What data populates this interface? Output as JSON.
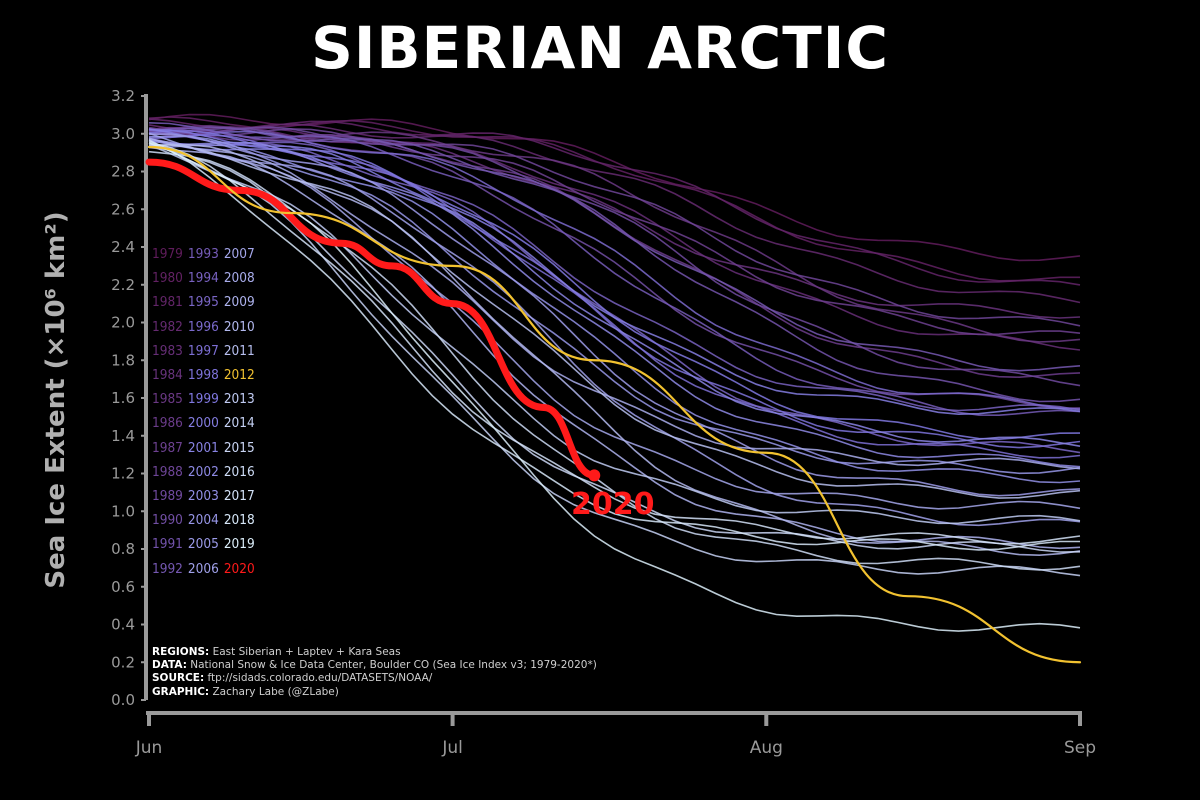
{
  "title": "SIBERIAN ARCTIC",
  "chart_data": {
    "type": "line",
    "title": "SIBERIAN ARCTIC",
    "ylabel": "Sea Ice Extent (×10⁶ km²)",
    "ylim": [
      0.0,
      3.2
    ],
    "yticks": [
      "0.0",
      "0.2",
      "0.4",
      "0.6",
      "0.8",
      "1.0",
      "1.2",
      "1.4",
      "1.6",
      "1.8",
      "2.0",
      "2.2",
      "2.4",
      "2.6",
      "2.8",
      "3.0",
      "3.2"
    ],
    "xticks": [
      "Jun",
      "Jul",
      "Aug",
      "Sep"
    ],
    "legend_years": [
      [
        "1979",
        "1993",
        "2007"
      ],
      [
        "1980",
        "1994",
        "2008"
      ],
      [
        "1981",
        "1995",
        "2009"
      ],
      [
        "1982",
        "1996",
        "2010"
      ],
      [
        "1983",
        "1997",
        "2011"
      ],
      [
        "1984",
        "1998",
        "2012"
      ],
      [
        "1985",
        "1999",
        "2013"
      ],
      [
        "1986",
        "2000",
        "2014"
      ],
      [
        "1987",
        "2001",
        "2015"
      ],
      [
        "1988",
        "2002",
        "2016"
      ],
      [
        "1989",
        "2003",
        "2017"
      ],
      [
        "1990",
        "2004",
        "2018"
      ],
      [
        "1991",
        "2005",
        "2019"
      ],
      [
        "1992",
        "2006",
        "2020"
      ]
    ],
    "highlight_colors": {
      "2012": "#f2c230",
      "2020": "#ff1a1a"
    },
    "series": [
      {
        "name": "2020",
        "x": [
          "Jun 1",
          "Jun 10",
          "Jun 20",
          "Jun 25",
          "Jul 1",
          "Jul 10",
          "Jul 15"
        ],
        "values": [
          2.85,
          2.7,
          2.42,
          2.3,
          2.1,
          1.55,
          1.19
        ]
      },
      {
        "name": "2012",
        "x": [
          "Jun 1",
          "Jun 15",
          "Jul 1",
          "Jul 15",
          "Aug 1",
          "Aug 15",
          "Sep 1"
        ],
        "values": [
          2.93,
          2.58,
          2.3,
          1.8,
          1.31,
          0.55,
          0.2
        ]
      }
    ],
    "label_2020": "2020"
  },
  "notes": {
    "regions_label": "REGIONS:",
    "regions": "East Siberian + Laptev + Kara Seas",
    "data_label": "DATA:",
    "data": "National Snow & Ice Data Center, Boulder CO (Sea Ice Index v3; 1979-2020*)",
    "source_label": "SOURCE:",
    "source": "ftp://sidads.colorado.edu/DATASETS/NOAA/",
    "graphic_label": "GRAPHIC:",
    "graphic": "Zachary Labe (@ZLabe)"
  }
}
